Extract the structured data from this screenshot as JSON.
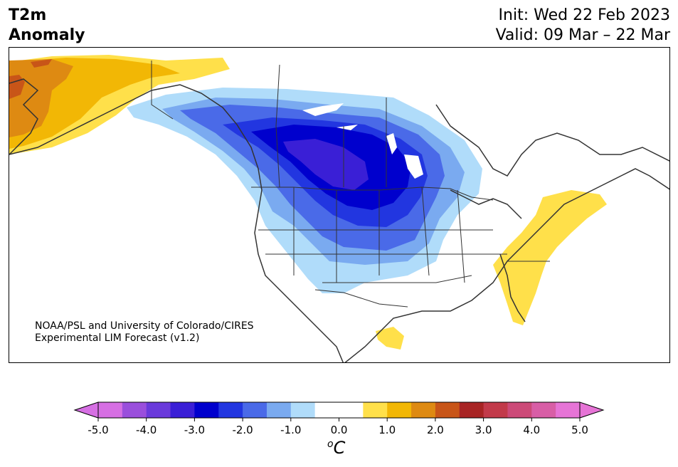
{
  "title": {
    "variable_line1": "T2m",
    "variable_line2": "Anomaly",
    "init": "Init: Wed 22 Feb 2023",
    "valid": "Valid: 09 Mar – 22 Mar"
  },
  "credit": {
    "line1": "NOAA/PSL and University of Colorado/CIRES",
    "line2": "Experimental LIM Forecast (v1.2)"
  },
  "colorbar": {
    "unit_superscript": "o",
    "unit_main": "C",
    "ticks": [
      "-5.0",
      "-4.0",
      "-3.0",
      "-2.0",
      "-1.0",
      "0.0",
      "1.0",
      "2.0",
      "3.0",
      "4.0",
      "5.0"
    ],
    "colors": [
      "#d66fe3",
      "#9a4fdc",
      "#6a3adb",
      "#3a1fd6",
      "#0000cd",
      "#2236e0",
      "#4a6ae8",
      "#7aaaf0",
      "#b0dcfa",
      "#ffffff",
      "#ffffff",
      "#ffe04a",
      "#f2b705",
      "#de8a12",
      "#c85518",
      "#a82424",
      "#c23a4a",
      "#cc4a78",
      "#d85ea6",
      "#e674d6"
    ],
    "under_color": "#d66fe3",
    "over_color": "#e674d6"
  },
  "map_colors": {
    "land_outline": "#333333",
    "light_blue": "#b0dcfa",
    "mid_blue": "#7aaaf0",
    "blue": "#4a6ae8",
    "bright_blue": "#2236e0",
    "deep_blue": "#0000cd",
    "indigo": "#3a1fd6",
    "yellow": "#ffe04a",
    "gold": "#f2b705",
    "orange": "#de8a12",
    "dark_orange": "#c85518"
  }
}
